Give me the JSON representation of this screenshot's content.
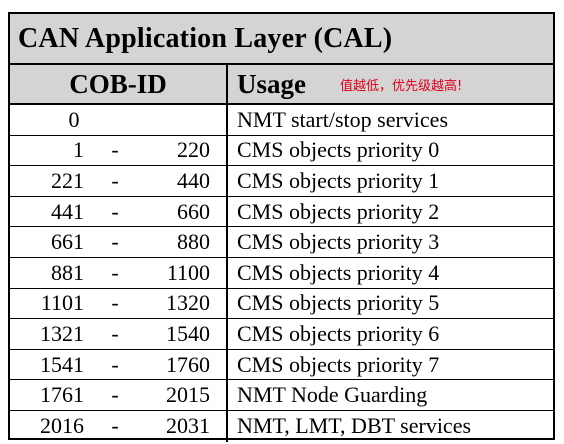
{
  "title": "CAN Application Layer (CAL)",
  "header": {
    "cob_id": "COB-ID",
    "usage": "Usage",
    "note": "值越低，优先级越高!"
  },
  "rows": [
    {
      "from": "0",
      "dash": "",
      "to": "",
      "usage": "NMT start/stop services"
    },
    {
      "from": "1",
      "dash": "-",
      "to": "220",
      "usage": "CMS objects priority 0"
    },
    {
      "from": "221",
      "dash": "-",
      "to": "440",
      "usage": "CMS objects priority 1"
    },
    {
      "from": "441",
      "dash": "-",
      "to": "660",
      "usage": "CMS objects priority 2"
    },
    {
      "from": "661",
      "dash": "-",
      "to": "880",
      "usage": "CMS objects priority 3"
    },
    {
      "from": "881",
      "dash": "-",
      "to": "1100",
      "usage": "CMS objects priority 4"
    },
    {
      "from": "1101",
      "dash": "-",
      "to": "1320",
      "usage": "CMS objects priority 5"
    },
    {
      "from": "1321",
      "dash": "-",
      "to": "1540",
      "usage": "CMS objects priority 6"
    },
    {
      "from": "1541",
      "dash": "-",
      "to": "1760",
      "usage": "CMS objects priority 7"
    },
    {
      "from": "1761",
      "dash": "-",
      "to": "2015",
      "usage": "NMT Node Guarding"
    },
    {
      "from": "2016",
      "dash": "-",
      "to": "2031",
      "usage": "NMT, LMT, DBT services"
    }
  ]
}
